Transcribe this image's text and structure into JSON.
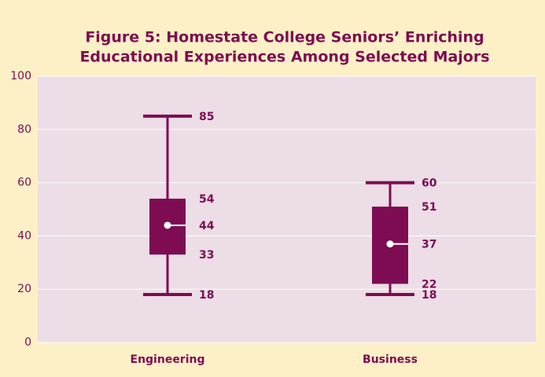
{
  "chart_data": {
    "type": "box",
    "title": [
      "Figure 5: Homestate College Seniors’ Enriching",
      "Educational Experiences Among Selected Majors"
    ],
    "categories": [
      "Engineering",
      "Business"
    ],
    "boxes": [
      {
        "min": 18,
        "q1": 33,
        "median": 44,
        "q3": 54,
        "max": 85
      },
      {
        "min": 18,
        "q1": 22,
        "median": 37,
        "q3": 51,
        "max": 60
      }
    ],
    "color": "#7d0c52",
    "ylim": [
      0,
      100
    ],
    "yticks": [
      0,
      20,
      40,
      60,
      80,
      100
    ],
    "grid": true
  }
}
